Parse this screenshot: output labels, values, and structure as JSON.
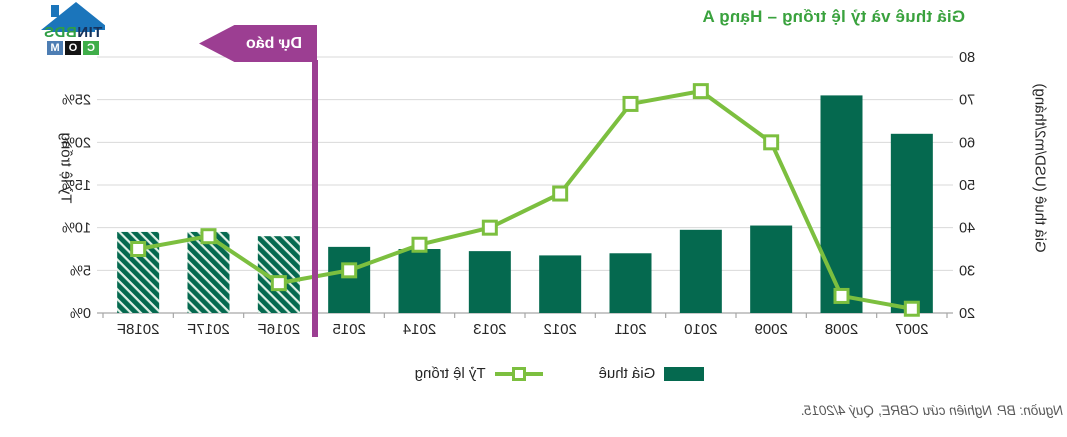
{
  "title": {
    "text": "Giá thuê và tỷ lệ trống – Hạng A",
    "color": "#3aa23e"
  },
  "logo": {
    "line1_dark": "TIN",
    "line1_green": "BDS",
    "boxes": [
      "C",
      "O",
      "M"
    ]
  },
  "forecast_banner": {
    "label": "Dự báo",
    "color": "#9c3e92"
  },
  "source": {
    "text": "Nguồn: BP. Nghiên cứu CBRE, Quý 4/2015."
  },
  "colors": {
    "bar": "#05694f",
    "bar_hatch_stripe": "#dff0e6",
    "line": "#7cbf3f",
    "marker_fill": "#ffffff",
    "gridline": "#d9d9d9",
    "axis_line": "#a6a6a6",
    "tick_text": "#262626",
    "title_green": "#3aa23e",
    "forecast_purple": "#9c3e92"
  },
  "chart_data": {
    "type": "bar",
    "subtype": "combo-bar-line",
    "mirrored": true,
    "title": "Giá thuê và tỷ lệ trống – Hạng A",
    "categories": [
      "2007",
      "2008",
      "2009",
      "2010",
      "2011",
      "2012",
      "2013",
      "2014",
      "2015",
      "2016F",
      "2017F",
      "2018F"
    ],
    "series": [
      {
        "name": "Giá thuê",
        "type": "bar",
        "axis": "rent",
        "values": [
          62,
          71,
          40.5,
          39.5,
          34,
          33.5,
          34.5,
          35,
          35.5,
          38,
          39,
          39
        ],
        "forecast_categories": [
          "2016F",
          "2017F",
          "2018F"
        ]
      },
      {
        "name": "Tỷ lệ trống",
        "type": "line",
        "axis": "vacancy",
        "marker": "square",
        "values": [
          0.5,
          2,
          20,
          26,
          24.5,
          14,
          10,
          8,
          5,
          3.5,
          9,
          7.5
        ]
      }
    ],
    "rent_axis": {
      "title": "Giá thuê (USD/m2/tháng)",
      "unit": "USD/m2/tháng",
      "min": 20,
      "max": 80,
      "tick_step": 10,
      "tick_labels": [
        "20",
        "30",
        "40",
        "50",
        "60",
        "70",
        "80"
      ],
      "side_in_image": "right"
    },
    "vacancy_axis": {
      "title": "Tỷ lệ trống",
      "unit": "%",
      "min": 0,
      "max": 25,
      "plot_max": 30,
      "tick_step": 5,
      "tick_labels": [
        "0%",
        "5%",
        "10%",
        "15%",
        "20%",
        "25%"
      ],
      "side_in_image": "left"
    },
    "grid": true,
    "legend_position": "bottom-center",
    "forecast_divider_between": [
      "2015",
      "2016F"
    ],
    "forecast_label": "Dự báo"
  }
}
